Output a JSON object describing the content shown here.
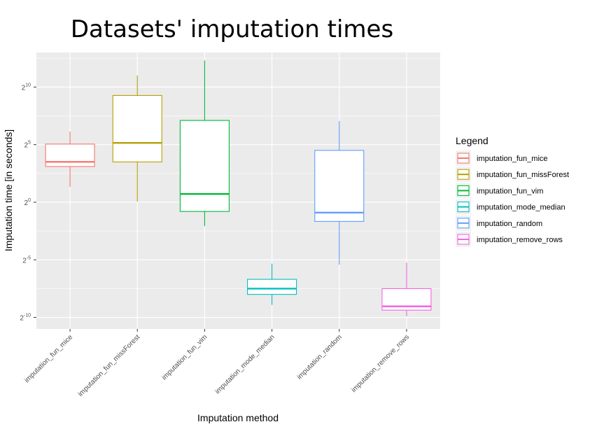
{
  "chart_data": {
    "type": "box",
    "title": "Datasets' imputation times",
    "xlabel": "Imputation method",
    "ylabel": "Imputation time [in seconds]",
    "y_scale": "log2",
    "ylim_log2": [
      -11.0,
      13.0
    ],
    "y_ticks_log2": [
      -10,
      -5,
      0,
      5,
      10
    ],
    "y_tick_base": "2",
    "grid": true,
    "legend_title": "Legend",
    "legend_position": "right",
    "categories": [
      "imputation_fun_mice",
      "imputation_fun_missForest",
      "imputation_fun_vim",
      "imputation_mode_median",
      "imputation_random",
      "imputation_remove_rows"
    ],
    "series": [
      {
        "name": "imputation_fun_mice",
        "color": "#F8766D",
        "whisker_low": 2.52,
        "q1": 8.57,
        "median": 11.31,
        "q3": 33.13,
        "whisker_high": 70.3
      },
      {
        "name": "imputation_fun_missForest",
        "color": "#B79F00",
        "whisker_low": 1.04,
        "q1": 11.31,
        "median": 35.5,
        "q3": 616.3,
        "whisker_high": 2048
      },
      {
        "name": "imputation_fun_vim",
        "color": "#00BA38",
        "whisker_low": 0.237,
        "q1": 0.574,
        "median": 1.64,
        "q3": 137.2,
        "whisker_high": 5043
      },
      {
        "name": "imputation_mode_median",
        "color": "#00BFC4",
        "whisker_low": 0.00207,
        "q1": 0.0039,
        "median": 0.00552,
        "q3": 0.00966,
        "whisker_high": 0.0248
      },
      {
        "name": "imputation_random",
        "color": "#619CFF",
        "whisker_low": 0.0234,
        "q1": 0.315,
        "median": 0.536,
        "q3": 22.63,
        "whisker_high": 132.5
      },
      {
        "name": "imputation_remove_rows",
        "color": "#F564E3",
        "whisker_low": 0.00104,
        "q1": 0.00151,
        "median": 0.0019,
        "q3": 0.00552,
        "whisker_high": 0.0263
      }
    ]
  }
}
